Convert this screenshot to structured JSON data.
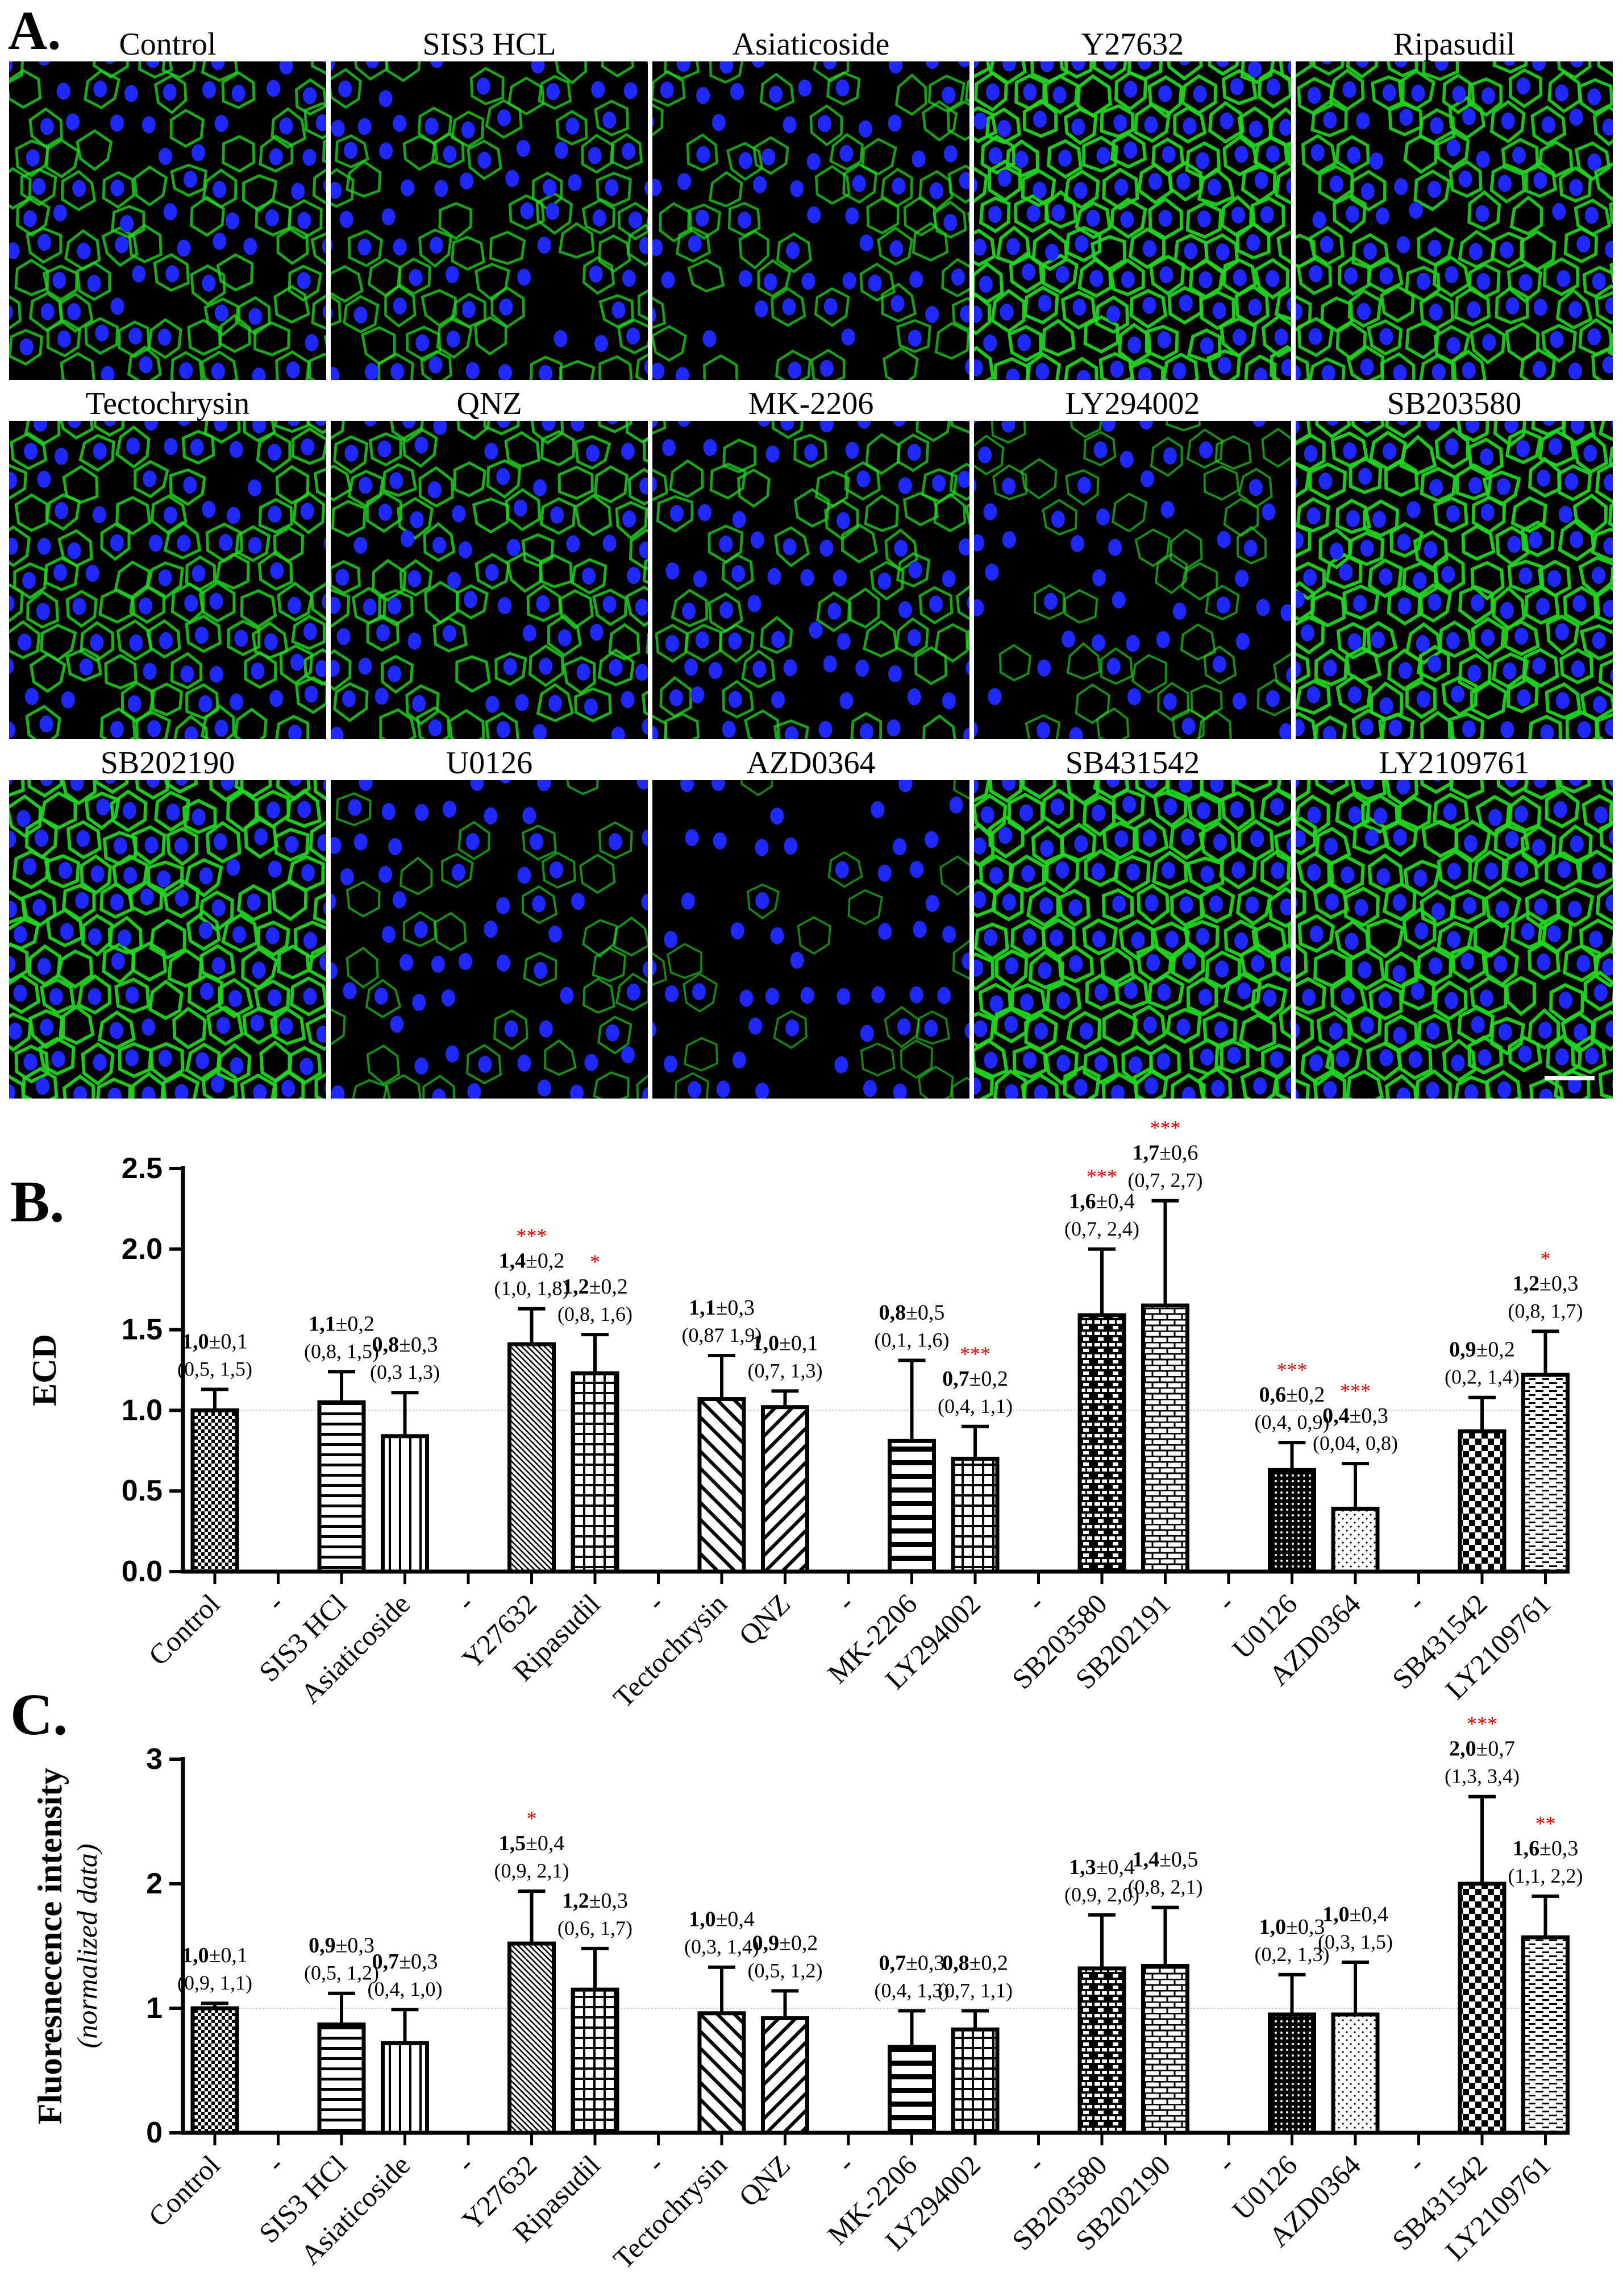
{
  "colors": {
    "cell_border": "#22d622",
    "nucleus": "#1f28ff",
    "background": "#000000",
    "significance": "#e00000",
    "scale_bar": "#ffffff"
  },
  "panel_a": {
    "label": "A.",
    "grid": [
      [
        "Control",
        "SIS3 HCL",
        "Asiaticoside",
        "Y27632",
        "Ripasudil"
      ],
      [
        "Tectochrysin",
        "QNZ",
        "MK-2206",
        "LY294002",
        "SB203580"
      ],
      [
        "SB202190",
        "U0126",
        "AZD0364",
        "SB431542",
        "LY2109761"
      ]
    ],
    "density": [
      [
        0.62,
        0.55,
        0.5,
        0.95,
        0.85
      ],
      [
        0.7,
        0.65,
        0.55,
        0.3,
        0.95
      ],
      [
        0.95,
        0.3,
        0.2,
        1.0,
        1.0
      ]
    ]
  },
  "chart_data": [
    {
      "panel_label": "B.",
      "type": "bar",
      "ylabel": "ECD",
      "ylabel_sub": "",
      "ylim": [
        0,
        2.5
      ],
      "yticks": [
        "0.0",
        "0.5",
        "1.0",
        "1.5",
        "2.0",
        "2.5"
      ],
      "reference_line": 1.0,
      "categories": [
        "Control",
        "-",
        "SIS3 HCl",
        "Asiaticoside",
        "-",
        "Y27632",
        "Ripasudil",
        "-",
        "Tectochrysin",
        "QNZ",
        "-",
        "MK-2206",
        "LY294002",
        "-",
        "SB203580",
        "SB202191",
        "-",
        "U0126",
        "AZD0364",
        "-",
        "SB431542",
        "LY2109761"
      ],
      "bars": [
        {
          "category": "Control",
          "value": 1.0,
          "error": 0.13,
          "pattern": "checker-small",
          "stat_mean": "1,0",
          "stat_sd": "±0,1",
          "stat_ci": "(0,5, 1,5)",
          "sig": ""
        },
        {
          "category": "SIS3 HCl",
          "value": 1.05,
          "error": 0.19,
          "pattern": "hlines",
          "stat_mean": "1,1",
          "stat_sd": "±0,2",
          "stat_ci": "(0,8, 1,5)",
          "sig": ""
        },
        {
          "category": "Asiaticoside",
          "value": 0.84,
          "error": 0.27,
          "pattern": "vlines",
          "stat_mean": "0,8",
          "stat_sd": "±0,3",
          "stat_ci": "(0,3 1,3)",
          "sig": ""
        },
        {
          "category": "Y27632",
          "value": 1.41,
          "error": 0.22,
          "pattern": "diag-dense",
          "stat_mean": "1,4",
          "stat_sd": "±0,2",
          "stat_ci": "(1,0, 1,8)",
          "sig": "***"
        },
        {
          "category": "Ripasudil",
          "value": 1.23,
          "error": 0.24,
          "pattern": "grid",
          "stat_mean": "1,2",
          "stat_sd": "±0,2",
          "stat_ci": "(0,8, 1,6)",
          "sig": "*"
        },
        {
          "category": "Tectochrysin",
          "value": 1.07,
          "error": 0.27,
          "pattern": "diag-back",
          "stat_mean": "1,1",
          "stat_sd": "±0,3",
          "stat_ci": "(0,87 1,9)",
          "sig": ""
        },
        {
          "category": "QNZ",
          "value": 1.02,
          "error": 0.1,
          "pattern": "diag-fwd",
          "stat_mean": "1,0",
          "stat_sd": "±0,1",
          "stat_ci": "(0,7, 1,3)",
          "sig": ""
        },
        {
          "category": "MK-2206",
          "value": 0.81,
          "error": 0.5,
          "pattern": "hlines-thick",
          "stat_mean": "0,8",
          "stat_sd": "±0,5",
          "stat_ci": "(0,1, 1,6)",
          "sig": ""
        },
        {
          "category": "LY294002",
          "value": 0.7,
          "error": 0.2,
          "pattern": "grid",
          "stat_mean": "0,7",
          "stat_sd": "±0,2",
          "stat_ci": "(0,4, 1,1)",
          "sig": "***"
        },
        {
          "category": "SB203580",
          "value": 1.59,
          "error": 0.41,
          "pattern": "brick-dark",
          "stat_mean": "1,6",
          "stat_sd": "±0,4",
          "stat_ci": "(0,7, 2,4)",
          "sig": "***"
        },
        {
          "category": "SB202191",
          "value": 1.65,
          "error": 0.65,
          "pattern": "brick-light",
          "stat_mean": "1,7",
          "stat_sd": "±0,6",
          "stat_ci": "(0,7, 2,7)",
          "sig": "***"
        },
        {
          "category": "U0126",
          "value": 0.63,
          "error": 0.17,
          "pattern": "dots-dense",
          "stat_mean": "0,6",
          "stat_sd": "±0,2",
          "stat_ci": "(0,4, 0,9)",
          "sig": "***"
        },
        {
          "category": "AZD0364",
          "value": 0.39,
          "error": 0.28,
          "pattern": "dots-sparse",
          "stat_mean": "0,4",
          "stat_sd": "±0,3",
          "stat_ci": "(0,04, 0,8)",
          "sig": "***"
        },
        {
          "category": "SB431542",
          "value": 0.87,
          "error": 0.21,
          "pattern": "checker-large",
          "stat_mean": "0,9",
          "stat_sd": "±0,2",
          "stat_ci": "(0,2, 1,4)",
          "sig": ""
        },
        {
          "category": "LY2109761",
          "value": 1.22,
          "error": 0.27,
          "pattern": "dashes",
          "stat_mean": "1,2",
          "stat_sd": "±0,3",
          "stat_ci": "(0,8, 1,7)",
          "sig": "*"
        }
      ]
    },
    {
      "panel_label": "C.",
      "type": "bar",
      "ylabel": "Fluoresnecence intensity",
      "ylabel_sub": "(normalized data)",
      "ylim": [
        0,
        3
      ],
      "yticks": [
        "0",
        "1",
        "2",
        "3"
      ],
      "reference_line": 1.0,
      "categories": [
        "Control",
        "-",
        "SIS3 HCl",
        "Asiaticoside",
        "-",
        "Y27632",
        "Ripasudil",
        "-",
        "Tectochrysin",
        "QNZ",
        "-",
        "MK-2206",
        "LY294002",
        "-",
        "SB203580",
        "SB202190",
        "-",
        "U0126",
        "AZD0364",
        "-",
        "SB431542",
        "LY2109761"
      ],
      "bars": [
        {
          "category": "Control",
          "value": 1.0,
          "error": 0.04,
          "pattern": "checker-small",
          "stat_mean": "1,0",
          "stat_sd": "±0,1",
          "stat_ci": "(0,9, 1,1)",
          "sig": ""
        },
        {
          "category": "SIS3 HCl",
          "value": 0.87,
          "error": 0.25,
          "pattern": "hlines",
          "stat_mean": "0,9",
          "stat_sd": "±0,3",
          "stat_ci": "(0,5, 1,2)",
          "sig": ""
        },
        {
          "category": "Asiaticoside",
          "value": 0.72,
          "error": 0.27,
          "pattern": "vlines",
          "stat_mean": "0,7",
          "stat_sd": "±0,3",
          "stat_ci": "(0,4, 1,0)",
          "sig": ""
        },
        {
          "category": "Y27632",
          "value": 1.52,
          "error": 0.42,
          "pattern": "diag-dense",
          "stat_mean": "1,5",
          "stat_sd": "±0,4",
          "stat_ci": "(0,9, 2,1)",
          "sig": "*"
        },
        {
          "category": "Ripasudil",
          "value": 1.15,
          "error": 0.33,
          "pattern": "grid",
          "stat_mean": "1,2",
          "stat_sd": "±0,3",
          "stat_ci": "(0,6, 1,7)",
          "sig": ""
        },
        {
          "category": "Tectochrysin",
          "value": 0.96,
          "error": 0.37,
          "pattern": "diag-back",
          "stat_mean": "1,0",
          "stat_sd": "±0,4",
          "stat_ci": "(0,3, 1,4)",
          "sig": ""
        },
        {
          "category": "QNZ",
          "value": 0.92,
          "error": 0.22,
          "pattern": "diag-fwd",
          "stat_mean": "0,9",
          "stat_sd": "±0,2",
          "stat_ci": "(0,5, 1,2)",
          "sig": ""
        },
        {
          "category": "MK-2206",
          "value": 0.69,
          "error": 0.29,
          "pattern": "hlines-thick",
          "stat_mean": "0,7",
          "stat_sd": "±0,3",
          "stat_ci": "(0,4, 1,3)",
          "sig": ""
        },
        {
          "category": "LY294002",
          "value": 0.83,
          "error": 0.15,
          "pattern": "grid",
          "stat_mean": "0,8",
          "stat_sd": "±0,2",
          "stat_ci": "(0,7, 1,1)",
          "sig": ""
        },
        {
          "category": "SB203580",
          "value": 1.32,
          "error": 0.43,
          "pattern": "brick-dark",
          "stat_mean": "1,3",
          "stat_sd": "±0,4",
          "stat_ci": "(0,9, 2,0)",
          "sig": ""
        },
        {
          "category": "SB202190",
          "value": 1.34,
          "error": 0.47,
          "pattern": "brick-light",
          "stat_mean": "1,4",
          "stat_sd": "±0,5",
          "stat_ci": "(0,8, 2,1)",
          "sig": ""
        },
        {
          "category": "U0126",
          "value": 0.95,
          "error": 0.32,
          "pattern": "dots-dense",
          "stat_mean": "1,0",
          "stat_sd": "±0,3",
          "stat_ci": "(0,2, 1,3)",
          "sig": ""
        },
        {
          "category": "AZD0364",
          "value": 0.95,
          "error": 0.42,
          "pattern": "dots-sparse",
          "stat_mean": "1,0",
          "stat_sd": "±0,4",
          "stat_ci": "(0,3, 1,5)",
          "sig": ""
        },
        {
          "category": "SB431542",
          "value": 2.0,
          "error": 0.7,
          "pattern": "checker-large",
          "stat_mean": "2,0",
          "stat_sd": "±0,7",
          "stat_ci": "(1,3, 3,4)",
          "sig": "***"
        },
        {
          "category": "LY2109761",
          "value": 1.57,
          "error": 0.33,
          "pattern": "dashes",
          "stat_mean": "1,6",
          "stat_sd": "±0,3",
          "stat_ci": "(1,1, 2,2)",
          "sig": "**"
        }
      ]
    }
  ]
}
